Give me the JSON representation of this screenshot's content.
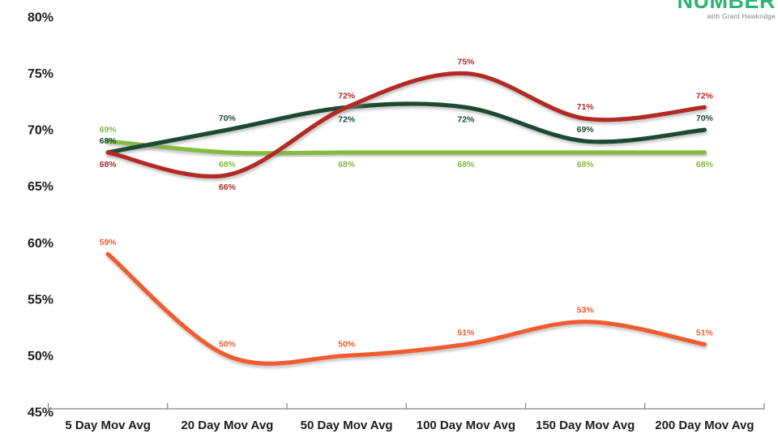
{
  "logo": {
    "brand": "NUMBER",
    "tagline": "with Grant Hawkridge",
    "brand_color": "#2bb573",
    "tagline_color": "#7b7d7e"
  },
  "chart_data": {
    "type": "line",
    "categories": [
      "5 Day Mov Avg",
      "20 Day Mov Avg",
      "50 Day Mov Avg",
      "100 Day Mov Avg",
      "150 Day Mov Avg",
      "200 Day Mov Avg"
    ],
    "y_ticks": [
      "45%",
      "50%",
      "55%",
      "60%",
      "65%",
      "70%",
      "75%",
      "80%"
    ],
    "y_tick_values": [
      45,
      50,
      55,
      60,
      65,
      70,
      75,
      80
    ],
    "ylim": [
      45,
      80
    ],
    "grid": false,
    "legend": false,
    "smooth": true,
    "axis_color": "#828282",
    "text_color": "#1d1d1d",
    "series": [
      {
        "name": "light-green-line",
        "color": "#85bb40",
        "values": [
          69,
          68,
          68,
          68,
          68,
          68
        ],
        "data_labels": [
          "69%",
          "68%",
          "68%",
          "68%",
          "68%",
          "68%"
        ],
        "label_positions": [
          "above",
          "below",
          "below",
          "below",
          "below",
          "below"
        ]
      },
      {
        "name": "dark-green-line",
        "color": "#1c4a32",
        "values": [
          68,
          70,
          72,
          72,
          69,
          70
        ],
        "data_labels": [
          "68%",
          "70%",
          "72%",
          "72%",
          "69%",
          "70%"
        ],
        "label_positions": [
          "above",
          "above",
          "below",
          "below",
          "above",
          "above"
        ]
      },
      {
        "name": "dark-red-line",
        "color": "#b22b25",
        "values": [
          68,
          66,
          72,
          75,
          71,
          72
        ],
        "data_labels": [
          "68%",
          "66%",
          "72%",
          "75%",
          "71%",
          "72%"
        ],
        "label_positions": [
          "below",
          "below",
          "above",
          "above",
          "above",
          "above"
        ]
      },
      {
        "name": "orange-line",
        "color": "#f15b2d",
        "values": [
          59,
          50,
          50,
          51,
          53,
          51
        ],
        "data_labels": [
          "59%",
          "50%",
          "50%",
          "51%",
          "53%",
          "51%"
        ],
        "label_positions": [
          "above",
          "above",
          "above",
          "above",
          "above",
          "above"
        ]
      }
    ]
  }
}
